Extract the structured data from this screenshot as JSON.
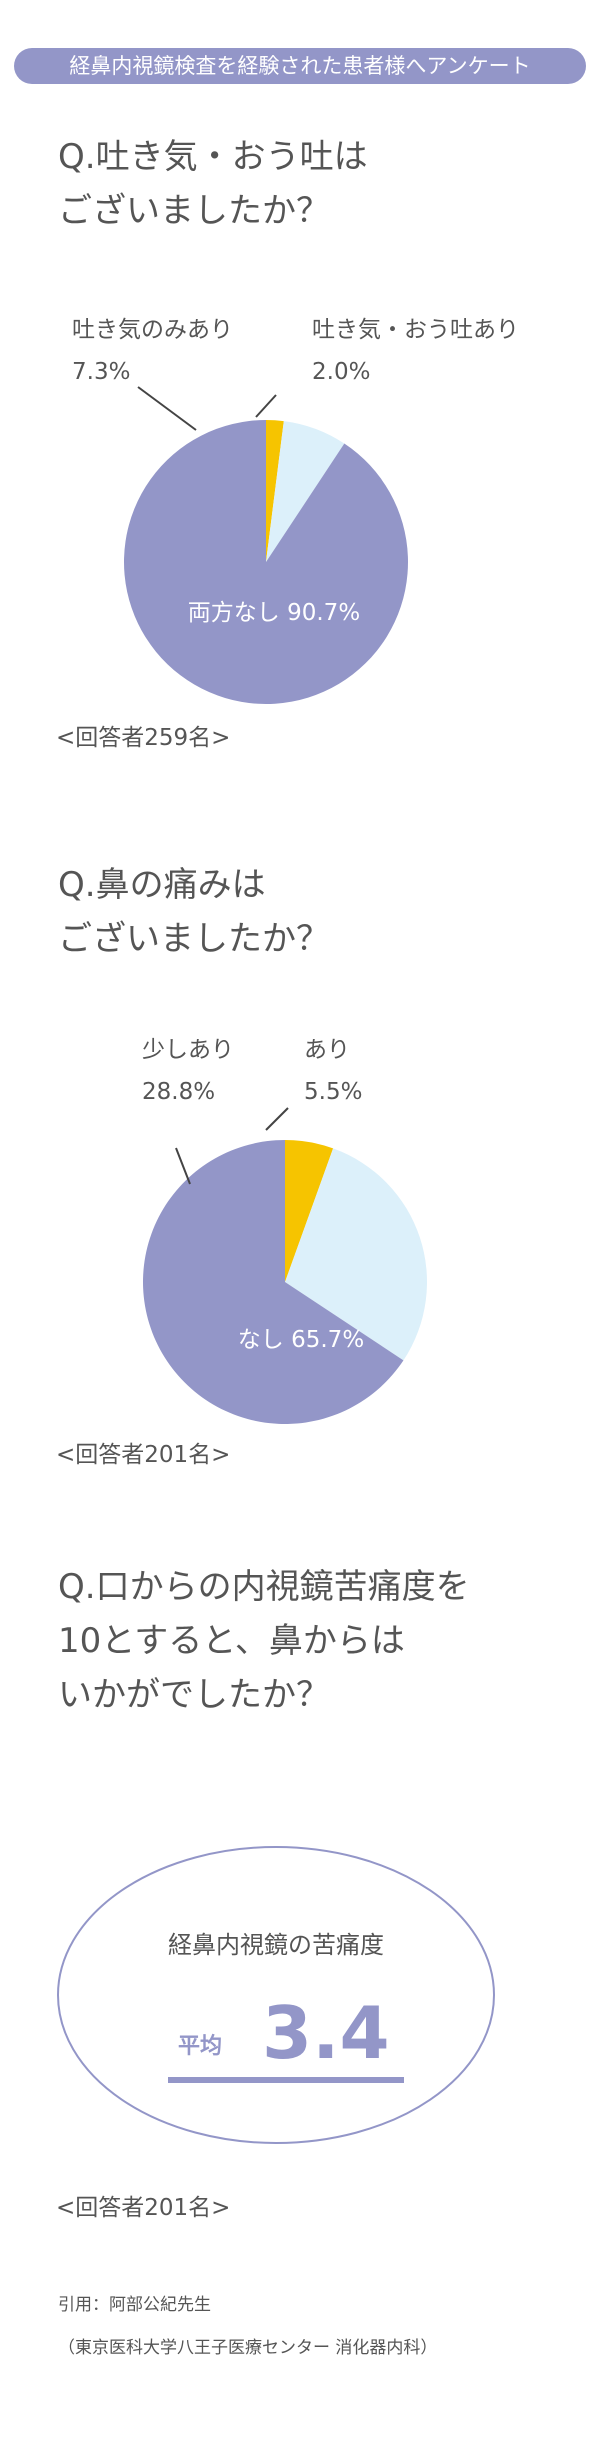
{
  "header": {
    "title": "経鼻内視鏡検査を経験された患者様へアンケート"
  },
  "colors": {
    "accent": "#9396c8",
    "yellow": "#f6c400",
    "lightblue": "#dcf0fa"
  },
  "q1": {
    "title_lines": [
      "Q.吐き気・おう吐は",
      "ございましたか？"
    ],
    "respondents": "<回答者259名>"
  },
  "q2": {
    "title_lines": [
      "Q.鼻の痛みは",
      "ございましたか？"
    ],
    "respondents": "<回答者201名>"
  },
  "q3": {
    "title_lines": [
      "Q.口からの内視鏡苦痛度を",
      "10とすると、鼻からは",
      "いかがでしたか？"
    ],
    "card_title": "経鼻内視鏡の苦痛度",
    "avg_label": "平均",
    "avg_value": "3.4",
    "respondents": "<回答者201名>"
  },
  "citation": {
    "line1": "引用：阿部公紀先生",
    "line2": "（東京医科大学八王子医療センター 消化器内科）"
  },
  "chart_data": [
    {
      "type": "pie",
      "slices": [
        {
          "label": "吐き気・おう吐あり",
          "value": 2.0,
          "value_text": "2.0%",
          "color": "#f6c400"
        },
        {
          "label": "吐き気のみあり",
          "value": 7.3,
          "value_text": "7.3%",
          "color": "#dcf0fa"
        },
        {
          "label": "両方なし",
          "value": 90.7,
          "value_text": "90.7%",
          "color": "#9396c8"
        }
      ]
    },
    {
      "type": "pie",
      "slices": [
        {
          "label": "あり",
          "value": 5.5,
          "value_text": "5.5%",
          "color": "#f6c400"
        },
        {
          "label": "少しあり",
          "value": 28.8,
          "value_text": "28.8%",
          "color": "#dcf0fa"
        },
        {
          "label": "なし",
          "value": 65.7,
          "value_text": "65.7%",
          "color": "#9396c8"
        }
      ]
    }
  ]
}
